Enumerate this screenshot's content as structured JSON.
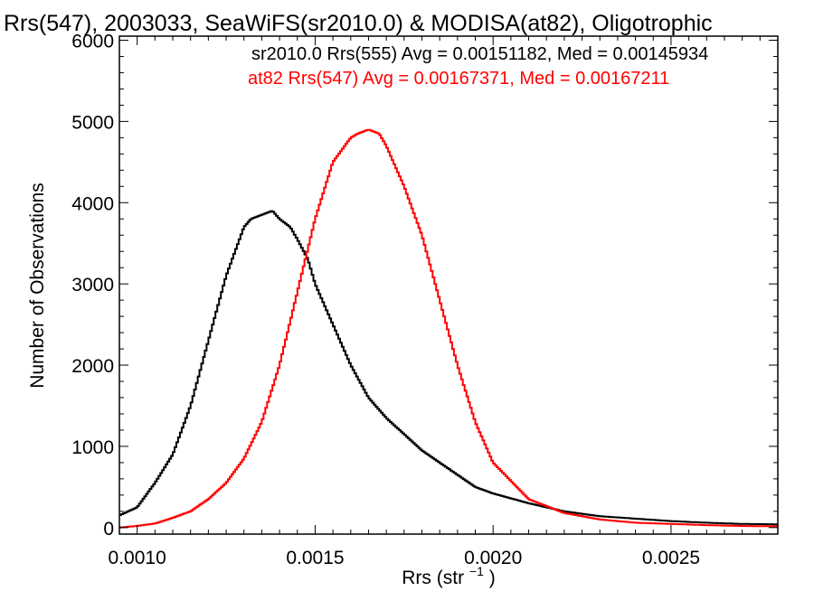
{
  "chart_data": {
    "type": "line",
    "title": "Rrs(547), 2003033, SeaWiFS(sr2010.0) & MODISA(at82), Oligotrophic",
    "xlabel": "Rrs (str",
    "xlabel_sup": "−1",
    "xlabel_close": ")",
    "ylabel": "Number of Observations",
    "xlim": [
      0.00095,
      0.0028
    ],
    "ylim": [
      -80,
      6050
    ],
    "xticks": [
      0.001,
      0.0015,
      0.002,
      0.0025
    ],
    "xtick_labels": [
      "0.0010",
      "0.0015",
      "0.0020",
      "0.0025"
    ],
    "yticks": [
      0,
      1000,
      2000,
      3000,
      4000,
      5000,
      6000
    ],
    "ytick_labels": [
      "0",
      "1000",
      "2000",
      "3000",
      "4000",
      "5000",
      "6000"
    ],
    "grid": false,
    "step": "histogram",
    "annotations": [
      {
        "text": "sr2010.0 Rrs(555) Avg = 0.00151182, Med = 0.00145934",
        "color": "#000000"
      },
      {
        "text": "at82 Rrs(547) Avg = 0.00167371, Med = 0.00167211",
        "color": "#ff0000"
      }
    ],
    "series": [
      {
        "color": "#000000",
        "x": [
          0.00095,
          0.001,
          0.00105,
          0.0011,
          0.00115,
          0.0012,
          0.00125,
          0.0013,
          0.00132,
          0.00135,
          0.00138,
          0.0014,
          0.00143,
          0.00145,
          0.00148,
          0.0015,
          0.00155,
          0.0016,
          0.00165,
          0.0017,
          0.00175,
          0.0018,
          0.00185,
          0.0019,
          0.00195,
          0.002,
          0.0021,
          0.0022,
          0.0023,
          0.0024,
          0.0025,
          0.0026,
          0.0027,
          0.0028
        ],
        "y": [
          150,
          250,
          550,
          900,
          1500,
          2300,
          3100,
          3700,
          3800,
          3850,
          3900,
          3800,
          3700,
          3550,
          3300,
          3000,
          2500,
          2000,
          1600,
          1350,
          1150,
          950,
          800,
          650,
          500,
          420,
          300,
          200,
          140,
          110,
          80,
          60,
          45,
          40
        ]
      },
      {
        "color": "#ff0000",
        "x": [
          0.00095,
          0.001,
          0.00105,
          0.0011,
          0.00115,
          0.0012,
          0.00125,
          0.0013,
          0.00135,
          0.0014,
          0.00145,
          0.0015,
          0.00155,
          0.0016,
          0.00162,
          0.00165,
          0.00168,
          0.0017,
          0.00173,
          0.00175,
          0.0018,
          0.00185,
          0.0019,
          0.00195,
          0.002,
          0.0021,
          0.0022,
          0.0023,
          0.0024,
          0.0025,
          0.0026,
          0.0027,
          0.0028
        ],
        "y": [
          0,
          20,
          50,
          120,
          200,
          350,
          550,
          850,
          1300,
          2000,
          2900,
          3800,
          4500,
          4800,
          4850,
          4900,
          4850,
          4700,
          4400,
          4200,
          3600,
          2800,
          2000,
          1300,
          800,
          350,
          180,
          100,
          60,
          45,
          30,
          20,
          15
        ]
      }
    ]
  }
}
